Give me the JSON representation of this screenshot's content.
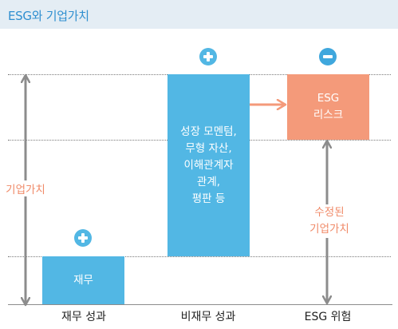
{
  "header": {
    "title": "ESG와 기업가치"
  },
  "columns": [
    {
      "category": "재무 성과",
      "box_text": "재무",
      "badge": "plus"
    },
    {
      "category": "비재무 성과",
      "box_text": "성장 모멘텀,\n무형 자산,\n이해관계자\n관계,\n평판 등",
      "badge": "plus"
    },
    {
      "category": "ESG 위험",
      "box_text": "ESG\n리스크",
      "badge": "minus"
    }
  ],
  "labels": {
    "left_axis": "기업가치",
    "adjusted_value": "수정된\n기업가치"
  },
  "colors": {
    "blue": "#52b7e4",
    "salmon": "#f49a7a",
    "label_orange": "#f08a68",
    "arrow_gray": "#8c8c8c",
    "header_bg": "#e4edf4",
    "header_text": "#2f8fd0"
  }
}
